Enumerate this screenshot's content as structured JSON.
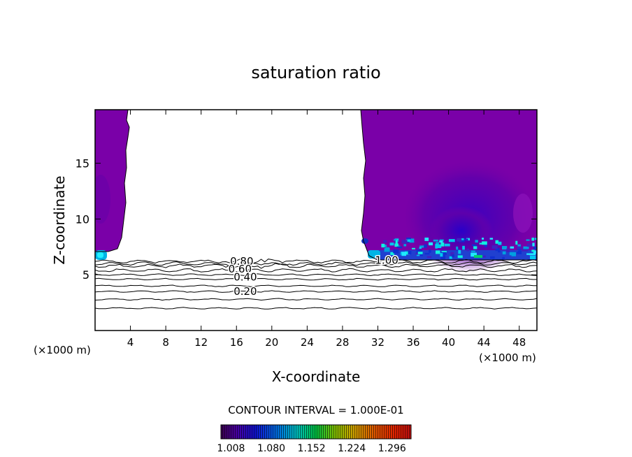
{
  "chart_data": {
    "type": "heatmap",
    "title": "saturation ratio",
    "xlabel": "X-coordinate",
    "ylabel": "Z-coordinate",
    "x_units_left": "(×1000 m)",
    "x_units_right": "(×1000 m)",
    "xlim": [
      0,
      50
    ],
    "ylim": [
      0,
      19.8
    ],
    "x_ticks": [
      4,
      8,
      12,
      16,
      20,
      24,
      28,
      32,
      36,
      40,
      44,
      48
    ],
    "y_ticks": [
      5,
      10,
      15
    ],
    "contour_interval_text": "CONTOUR INTERVAL = 1.000E-01",
    "contour_labels": [
      {
        "text": "0.80",
        "x": 16.6,
        "z": 6.2
      },
      {
        "text": "0.60",
        "x": 16.4,
        "z": 5.5
      },
      {
        "text": "0.40",
        "x": 17.0,
        "z": 4.8
      },
      {
        "text": "0.20",
        "x": 17.0,
        "z": 3.5
      },
      {
        "text": "1.00",
        "x": 33.0,
        "z": 6.3
      }
    ],
    "contour_levels_z": [
      2.0,
      2.8,
      3.5,
      4.0,
      4.6,
      5.0,
      5.4,
      5.8,
      6.0,
      6.2
    ],
    "colorbar": {
      "tick_labels": [
        "1.008",
        "1.080",
        "1.152",
        "1.224",
        "1.296"
      ],
      "min": 0.99,
      "max": 1.33
    },
    "colors": {
      "supersat_base": "#7a00a8",
      "supersat_mid": "#6a00a8",
      "supersat_deep": "#3e00c0",
      "high_band": "#00b4e6",
      "high_band_bright": "#20f0ff",
      "green_spot": "#00d070",
      "unsaturated": "#ffffff"
    }
  }
}
